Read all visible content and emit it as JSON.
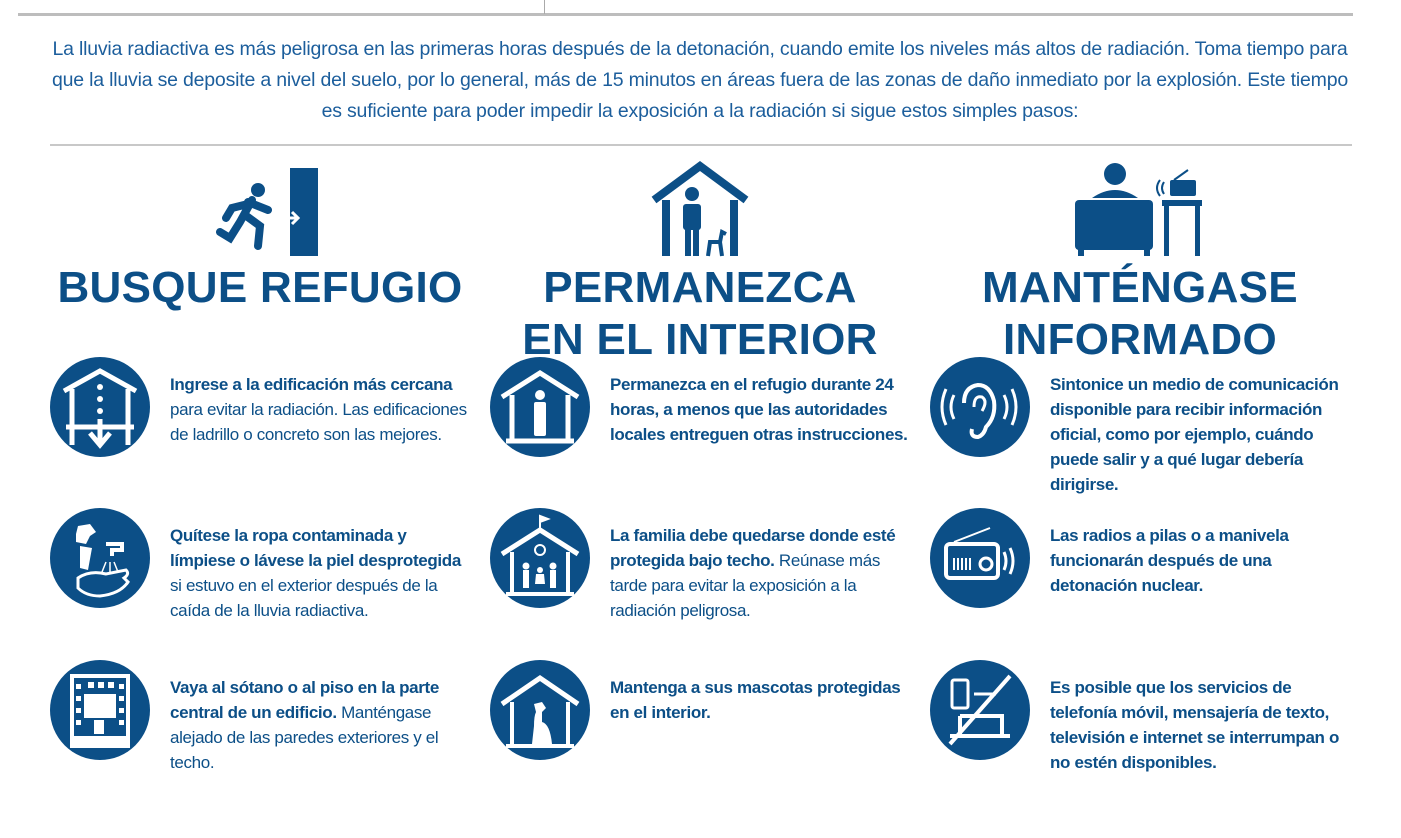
{
  "intro": "La lluvia radiactiva es más peligrosa en las primeras horas después de la detonación, cuando emite los niveles más altos de radiación. Toma tiempo para que la lluvia se deposite a nivel del suelo, por lo general, más de 15 minutos en áreas fuera de las zonas de daño inmediato por la explosión. Este tiempo es suficiente para poder impedir la exposición a la radiación si sigue estos simples pasos:",
  "colors": {
    "primary": "#0c4f87",
    "intro": "#1c5e9c"
  },
  "columns": [
    {
      "heading": "BUSQUE REFUGIO",
      "icon": "running-exit-icon",
      "items": [
        {
          "icon": "house-down-arrow-icon",
          "bold": "Ingrese a la edificación más cercana",
          "text": " para evitar la radiación. Las edificaciones de ladrillo o concreto son las mejores."
        },
        {
          "icon": "wash-clothes-hands-icon",
          "bold": "Quítese la ropa contaminada y límpiese o lávese la piel desprotegida",
          "text": " si estuvo en el exterior después de la caída de la lluvia radiactiva."
        },
        {
          "icon": "building-center-icon",
          "bold": "Vaya al sótano o al piso en la parte central de un edificio.",
          "text": " Manténgase alejado de las paredes exteriores y el techo."
        }
      ]
    },
    {
      "heading": "PERMANEZCA EN EL INTERIOR",
      "icon": "person-dog-house-icon",
      "items": [
        {
          "icon": "person-in-house-icon",
          "bold": "Permanezca en el refugio durante 24 horas, a menos que las autoridades locales entreguen otras instrucciones.",
          "text": ""
        },
        {
          "icon": "family-school-icon",
          "bold": "La familia debe quedarse donde esté protegida bajo techo.",
          "text": " Reúnase más tarde para evitar la exposición a la radiación peligrosa."
        },
        {
          "icon": "dog-in-house-icon",
          "bold": "Mantenga a sus mascotas protegidas en el interior.",
          "text": ""
        }
      ]
    },
    {
      "heading": "MANTÉNGASE INFORMADO",
      "icon": "person-tv-radio-icon",
      "items": [
        {
          "icon": "ear-listening-icon",
          "bold": "Sintonice un medio de comunicación disponible para recibir información oficial, como por ejemplo, cuándo puede salir y a qué lugar debería dirigirse.",
          "text": ""
        },
        {
          "icon": "radio-icon",
          "bold": "Las radios a pilas o a manivela funcionarán después de una detonación nuclear.",
          "text": ""
        },
        {
          "icon": "no-phone-laptop-icon",
          "bold": "Es posible que los servicios de telefonía móvil, mensajería de texto, televisión e internet se interrumpan o no estén disponibles.",
          "text": ""
        }
      ]
    }
  ]
}
